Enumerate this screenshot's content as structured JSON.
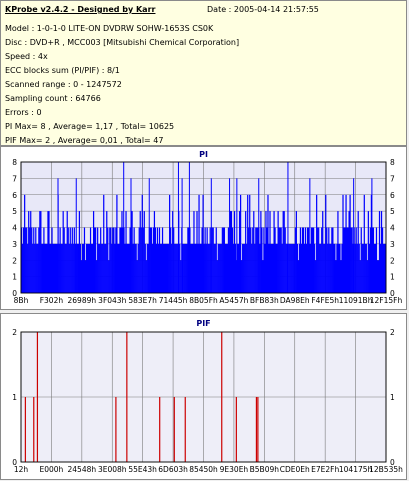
{
  "info": {
    "title": "KProbe v2.4.2 - Designed by Karr",
    "date": "Date : 2005-04-14 21:57:55",
    "lines": [
      "Model : 1-0-1-0 LITE-ON DVDRW SOHW-1653S CS0K",
      "Disc : DVD+R , MCC003 [Mitsubishi Chemical Corporation]",
      "Speed : 4x",
      "ECC blocks sum (PI/PIF) : 8/1",
      "Scanned range : 0 - 1247572",
      "Sampling count : 64766",
      "Errors : 0",
      "PI Max= 8 , Average= 1,17 , Total= 10625",
      "PIF Max= 2 , Average= 0,01 , Total= 47"
    ]
  },
  "colors": {
    "pi_fill": "#0000ff",
    "pif_line": "#cc0000",
    "grid": "#7a7a7a",
    "title": "#000080"
  },
  "chart_data": [
    {
      "type": "bar",
      "title": "PI",
      "ylim": [
        0,
        8
      ],
      "yticks": [
        "0",
        "1",
        "2",
        "3",
        "4",
        "5",
        "6",
        "7",
        "8"
      ],
      "xticks": [
        "8Bh",
        "F302h",
        "26989h",
        "3F043h",
        "583E7h",
        "71445h",
        "8B05Fh",
        "A5457h",
        "BFB83h",
        "DA98Eh",
        "F4FE5h",
        "11091Bh",
        "12F15Fh"
      ],
      "baseline": 3,
      "peaks": [
        {
          "x": 0.1,
          "y": 7
        },
        {
          "x": 0.15,
          "y": 7
        },
        {
          "x": 0.28,
          "y": 8
        },
        {
          "x": 0.3,
          "y": 7
        },
        {
          "x": 0.35,
          "y": 7
        },
        {
          "x": 0.43,
          "y": 8
        },
        {
          "x": 0.44,
          "y": 7
        },
        {
          "x": 0.46,
          "y": 8
        },
        {
          "x": 0.52,
          "y": 7
        },
        {
          "x": 0.57,
          "y": 7
        },
        {
          "x": 0.59,
          "y": 7
        },
        {
          "x": 0.65,
          "y": 7
        },
        {
          "x": 0.73,
          "y": 8
        },
        {
          "x": 0.79,
          "y": 7
        },
        {
          "x": 0.91,
          "y": 7
        },
        {
          "x": 0.96,
          "y": 7
        }
      ],
      "grid": true
    },
    {
      "type": "bar",
      "title": "PIF",
      "ylim": [
        0,
        2
      ],
      "yticks": [
        "0",
        "1",
        "2"
      ],
      "xticks": [
        "12h",
        "E000h",
        "24548h",
        "3E008h",
        "55E43h",
        "6D603h",
        "85450h",
        "9E30Eh",
        "B5B09h",
        "CDE0Eh",
        "E7E2Fh",
        "104175h",
        "12B535h"
      ],
      "spikes": [
        {
          "x": 0.012,
          "y": 1
        },
        {
          "x": 0.035,
          "y": 1
        },
        {
          "x": 0.045,
          "y": 2
        },
        {
          "x": 0.26,
          "y": 1
        },
        {
          "x": 0.29,
          "y": 2
        },
        {
          "x": 0.38,
          "y": 1
        },
        {
          "x": 0.42,
          "y": 1
        },
        {
          "x": 0.45,
          "y": 1
        },
        {
          "x": 0.55,
          "y": 2
        },
        {
          "x": 0.59,
          "y": 1
        },
        {
          "x": 0.645,
          "y": 1
        },
        {
          "x": 0.649,
          "y": 1
        }
      ],
      "grid": true
    }
  ]
}
